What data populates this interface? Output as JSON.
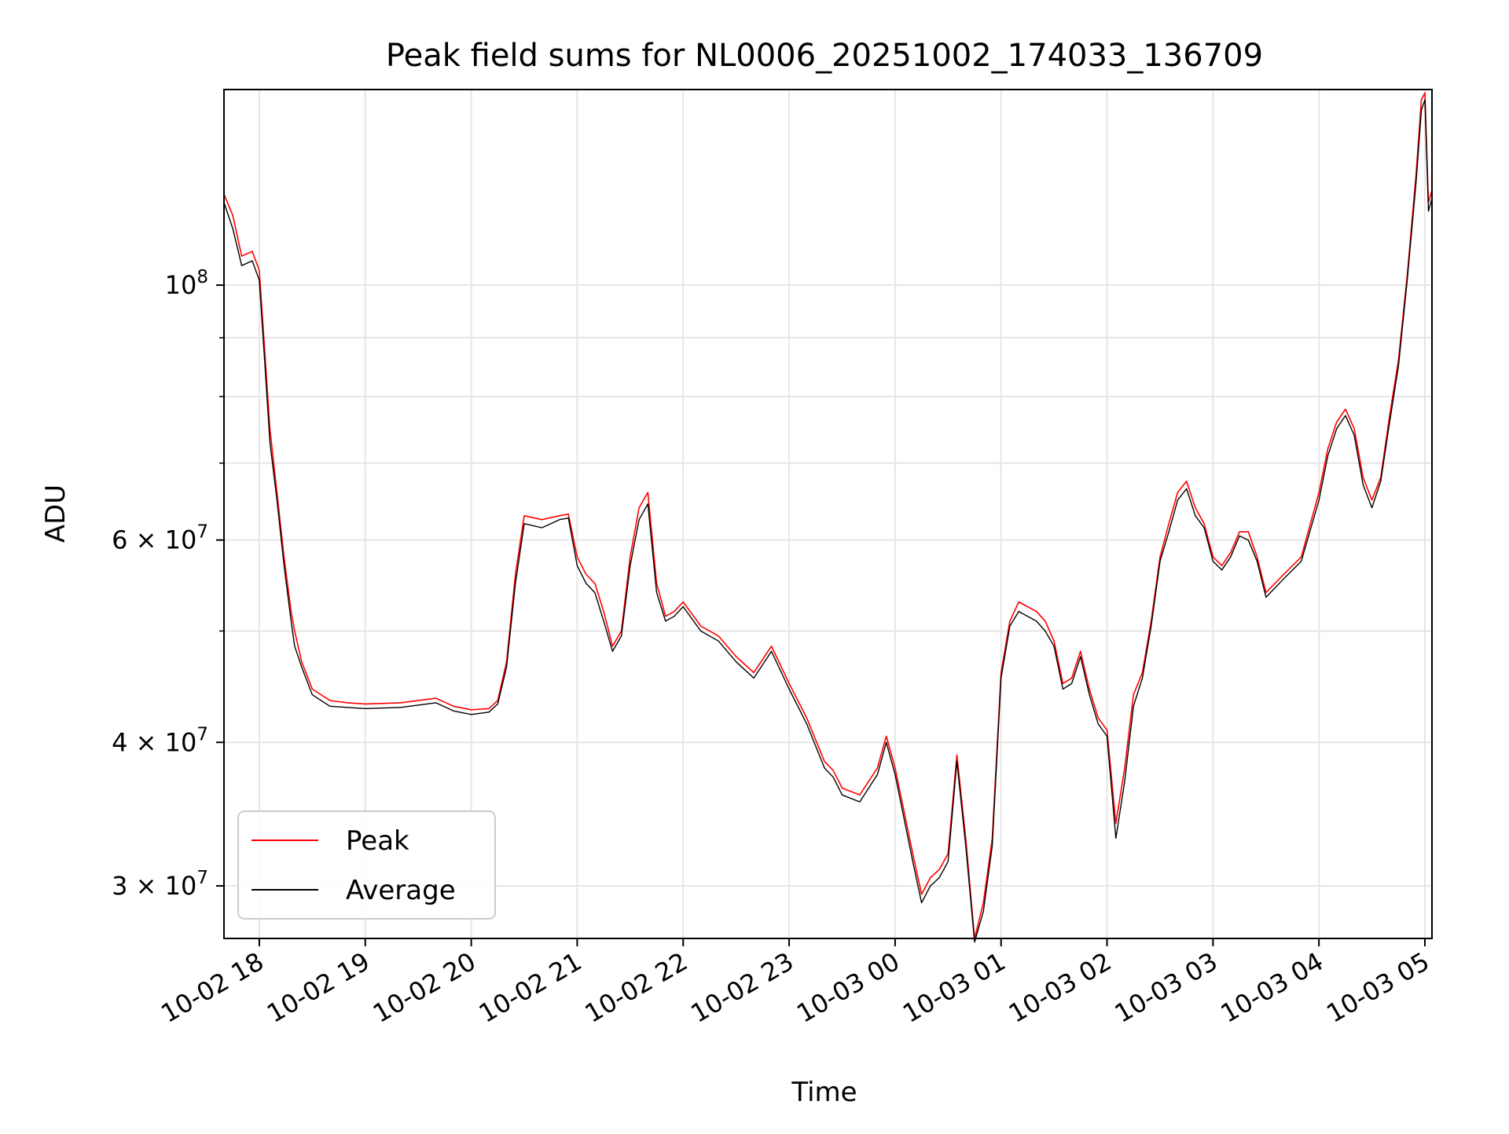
{
  "chart_data": {
    "type": "line",
    "title": "Peak field sums for NL0006_20251002_174033_136709",
    "xlabel": "Time",
    "ylabel": "ADU",
    "yscale": "log",
    "xlim": [
      "2025-10-02 17:40",
      "2025-10-03 05:04"
    ],
    "ylim": [
      27000000,
      148000000
    ],
    "grid": true,
    "legend_position": "lower-left",
    "x_ticks": [
      {
        "value": "2025-10-02 18:00",
        "label": "10-02 18"
      },
      {
        "value": "2025-10-02 19:00",
        "label": "10-02 19"
      },
      {
        "value": "2025-10-02 20:00",
        "label": "10-02 20"
      },
      {
        "value": "2025-10-02 21:00",
        "label": "10-02 21"
      },
      {
        "value": "2025-10-02 22:00",
        "label": "10-02 22"
      },
      {
        "value": "2025-10-02 23:00",
        "label": "10-02 23"
      },
      {
        "value": "2025-10-03 00:00",
        "label": "10-03 00"
      },
      {
        "value": "2025-10-03 01:00",
        "label": "10-03 01"
      },
      {
        "value": "2025-10-03 02:00",
        "label": "10-03 02"
      },
      {
        "value": "2025-10-03 03:00",
        "label": "10-03 03"
      },
      {
        "value": "2025-10-03 04:00",
        "label": "10-03 04"
      },
      {
        "value": "2025-10-03 05:00",
        "label": "10-03 05"
      }
    ],
    "y_ticks": [
      {
        "value": 100000000,
        "mantissa": "",
        "exp": "8"
      },
      {
        "value": 60000000,
        "mantissa": "6",
        "exp": "7"
      },
      {
        "value": 40000000,
        "mantissa": "4",
        "exp": "7"
      },
      {
        "value": 30000000,
        "mantissa": "3",
        "exp": "7"
      }
    ],
    "y_minor_ticks": [
      50000000,
      70000000,
      80000000,
      90000000
    ],
    "series": [
      {
        "name": "Peak",
        "color": "#ff0000",
        "x": [
          "2025-10-02 17:40",
          "2025-10-02 17:45",
          "2025-10-02 17:50",
          "2025-10-02 17:56",
          "2025-10-02 18:00",
          "2025-10-02 18:03",
          "2025-10-02 18:06",
          "2025-10-02 18:10",
          "2025-10-02 18:14",
          "2025-10-02 18:18",
          "2025-10-02 18:20",
          "2025-10-02 18:24",
          "2025-10-02 18:30",
          "2025-10-02 18:40",
          "2025-10-02 18:50",
          "2025-10-02 19:00",
          "2025-10-02 19:20",
          "2025-10-02 19:40",
          "2025-10-02 19:50",
          "2025-10-02 20:00",
          "2025-10-02 20:10",
          "2025-10-02 20:15",
          "2025-10-02 20:20",
          "2025-10-02 20:25",
          "2025-10-02 20:30",
          "2025-10-02 20:40",
          "2025-10-02 20:50",
          "2025-10-02 20:55",
          "2025-10-02 21:00",
          "2025-10-02 21:05",
          "2025-10-02 21:10",
          "2025-10-02 21:15",
          "2025-10-02 21:20",
          "2025-10-02 21:25",
          "2025-10-02 21:30",
          "2025-10-02 21:35",
          "2025-10-02 21:40",
          "2025-10-02 21:45",
          "2025-10-02 21:50",
          "2025-10-02 21:55",
          "2025-10-02 22:00",
          "2025-10-02 22:10",
          "2025-10-02 22:20",
          "2025-10-02 22:30",
          "2025-10-02 22:40",
          "2025-10-02 22:50",
          "2025-10-02 23:00",
          "2025-10-02 23:10",
          "2025-10-02 23:20",
          "2025-10-02 23:25",
          "2025-10-02 23:30",
          "2025-10-02 23:40",
          "2025-10-02 23:50",
          "2025-10-02 23:55",
          "2025-10-03 00:00",
          "2025-10-03 00:10",
          "2025-10-03 00:15",
          "2025-10-03 00:20",
          "2025-10-03 00:25",
          "2025-10-03 00:30",
          "2025-10-03 00:35",
          "2025-10-03 00:40",
          "2025-10-03 00:45",
          "2025-10-03 00:50",
          "2025-10-03 00:55",
          "2025-10-03 01:00",
          "2025-10-03 01:05",
          "2025-10-03 01:10",
          "2025-10-03 01:15",
          "2025-10-03 01:20",
          "2025-10-03 01:25",
          "2025-10-03 01:30",
          "2025-10-03 01:35",
          "2025-10-03 01:40",
          "2025-10-03 01:45",
          "2025-10-03 01:50",
          "2025-10-03 01:55",
          "2025-10-03 02:00",
          "2025-10-03 02:05",
          "2025-10-03 02:10",
          "2025-10-03 02:15",
          "2025-10-03 02:20",
          "2025-10-03 02:25",
          "2025-10-03 02:30",
          "2025-10-03 02:35",
          "2025-10-03 02:40",
          "2025-10-03 02:45",
          "2025-10-03 02:50",
          "2025-10-03 02:55",
          "2025-10-03 03:00",
          "2025-10-03 03:05",
          "2025-10-03 03:10",
          "2025-10-03 03:15",
          "2025-10-03 03:20",
          "2025-10-03 03:25",
          "2025-10-03 03:30",
          "2025-10-03 03:40",
          "2025-10-03 03:50",
          "2025-10-03 04:00",
          "2025-10-03 04:05",
          "2025-10-03 04:10",
          "2025-10-03 04:15",
          "2025-10-03 04:20",
          "2025-10-03 04:25",
          "2025-10-03 04:30",
          "2025-10-03 04:35",
          "2025-10-03 04:40",
          "2025-10-03 04:45",
          "2025-10-03 04:50",
          "2025-10-03 04:55",
          "2025-10-03 04:58",
          "2025-10-03 05:00",
          "2025-10-03 05:02",
          "2025-10-03 05:04"
        ],
        "y": [
          120000000,
          115000000,
          106000000,
          107000000,
          103000000,
          88000000,
          75000000,
          66000000,
          58000000,
          52000000,
          50000000,
          47000000,
          44500000,
          43500000,
          43300000,
          43200000,
          43300000,
          43700000,
          43000000,
          42700000,
          42800000,
          43500000,
          47000000,
          56000000,
          63000000,
          62500000,
          63000000,
          63200000,
          58000000,
          56000000,
          55000000,
          52000000,
          48500000,
          50000000,
          58000000,
          64000000,
          66000000,
          55000000,
          51500000,
          52000000,
          53000000,
          50500000,
          49500000,
          47500000,
          46000000,
          48500000,
          45000000,
          42000000,
          38500000,
          37800000,
          36500000,
          36000000,
          38000000,
          40500000,
          38000000,
          32000000,
          29500000,
          30500000,
          31000000,
          32000000,
          39000000,
          33000000,
          27000000,
          29000000,
          33000000,
          46000000,
          51000000,
          53000000,
          52500000,
          52000000,
          51000000,
          49000000,
          45000000,
          45500000,
          48000000,
          44500000,
          42000000,
          41000000,
          34000000,
          38000000,
          44000000,
          46000000,
          51000000,
          58000000,
          62000000,
          66000000,
          67500000,
          64000000,
          62000000,
          58000000,
          57000000,
          58500000,
          61000000,
          61000000,
          58000000,
          54000000,
          56000000,
          58000000,
          66000000,
          72000000,
          76000000,
          78000000,
          75000000,
          68000000,
          65000000,
          68000000,
          77000000,
          86000000,
          102000000,
          125000000,
          145000000,
          147000000,
          118000000,
          121000000
        ]
      },
      {
        "name": "Average",
        "color": "#000000",
        "x": [
          "2025-10-02 17:40",
          "2025-10-02 17:45",
          "2025-10-02 17:50",
          "2025-10-02 17:56",
          "2025-10-02 18:00",
          "2025-10-02 18:03",
          "2025-10-02 18:06",
          "2025-10-02 18:10",
          "2025-10-02 18:14",
          "2025-10-02 18:18",
          "2025-10-02 18:20",
          "2025-10-02 18:24",
          "2025-10-02 18:30",
          "2025-10-02 18:40",
          "2025-10-02 18:50",
          "2025-10-02 19:00",
          "2025-10-02 19:20",
          "2025-10-02 19:40",
          "2025-10-02 19:50",
          "2025-10-02 20:00",
          "2025-10-02 20:10",
          "2025-10-02 20:15",
          "2025-10-02 20:20",
          "2025-10-02 20:25",
          "2025-10-02 20:30",
          "2025-10-02 20:40",
          "2025-10-02 20:50",
          "2025-10-02 20:55",
          "2025-10-02 21:00",
          "2025-10-02 21:05",
          "2025-10-02 21:10",
          "2025-10-02 21:15",
          "2025-10-02 21:20",
          "2025-10-02 21:25",
          "2025-10-02 21:30",
          "2025-10-02 21:35",
          "2025-10-02 21:40",
          "2025-10-02 21:45",
          "2025-10-02 21:50",
          "2025-10-02 21:55",
          "2025-10-02 22:00",
          "2025-10-02 22:10",
          "2025-10-02 22:20",
          "2025-10-02 22:30",
          "2025-10-02 22:40",
          "2025-10-02 22:50",
          "2025-10-02 23:00",
          "2025-10-02 23:10",
          "2025-10-02 23:20",
          "2025-10-02 23:25",
          "2025-10-02 23:30",
          "2025-10-02 23:40",
          "2025-10-02 23:50",
          "2025-10-02 23:55",
          "2025-10-03 00:00",
          "2025-10-03 00:10",
          "2025-10-03 00:15",
          "2025-10-03 00:20",
          "2025-10-03 00:25",
          "2025-10-03 00:30",
          "2025-10-03 00:35",
          "2025-10-03 00:40",
          "2025-10-03 00:45",
          "2025-10-03 00:50",
          "2025-10-03 00:55",
          "2025-10-03 01:00",
          "2025-10-03 01:05",
          "2025-10-03 01:10",
          "2025-10-03 01:15",
          "2025-10-03 01:20",
          "2025-10-03 01:25",
          "2025-10-03 01:30",
          "2025-10-03 01:35",
          "2025-10-03 01:40",
          "2025-10-03 01:45",
          "2025-10-03 01:50",
          "2025-10-03 01:55",
          "2025-10-03 02:00",
          "2025-10-03 02:05",
          "2025-10-03 02:10",
          "2025-10-03 02:15",
          "2025-10-03 02:20",
          "2025-10-03 02:25",
          "2025-10-03 02:30",
          "2025-10-03 02:35",
          "2025-10-03 02:40",
          "2025-10-03 02:45",
          "2025-10-03 02:50",
          "2025-10-03 02:55",
          "2025-10-03 03:00",
          "2025-10-03 03:05",
          "2025-10-03 03:10",
          "2025-10-03 03:15",
          "2025-10-03 03:20",
          "2025-10-03 03:25",
          "2025-10-03 03:30",
          "2025-10-03 03:40",
          "2025-10-03 03:50",
          "2025-10-03 04:00",
          "2025-10-03 04:05",
          "2025-10-03 04:10",
          "2025-10-03 04:15",
          "2025-10-03 04:20",
          "2025-10-03 04:25",
          "2025-10-03 04:30",
          "2025-10-03 04:35",
          "2025-10-03 04:40",
          "2025-10-03 04:45",
          "2025-10-03 04:50",
          "2025-10-03 04:55",
          "2025-10-03 04:58",
          "2025-10-03 05:00",
          "2025-10-03 05:02",
          "2025-10-03 05:04"
        ],
        "y": [
          118000000,
          112000000,
          104000000,
          105000000,
          101000000,
          86000000,
          73000000,
          65000000,
          57000000,
          51000000,
          48500000,
          46500000,
          44000000,
          43000000,
          42900000,
          42800000,
          42900000,
          43300000,
          42600000,
          42300000,
          42500000,
          43200000,
          46500000,
          55000000,
          62000000,
          61500000,
          62500000,
          62700000,
          57000000,
          55000000,
          54000000,
          51000000,
          48000000,
          49500000,
          57000000,
          62500000,
          64500000,
          54000000,
          51000000,
          51500000,
          52500000,
          50000000,
          49000000,
          47000000,
          45500000,
          48000000,
          44500000,
          41500000,
          38000000,
          37300000,
          36000000,
          35500000,
          37500000,
          40000000,
          37500000,
          31500000,
          29000000,
          30000000,
          30500000,
          31500000,
          38500000,
          32500000,
          26800000,
          28500000,
          32500000,
          45500000,
          50500000,
          52000000,
          51500000,
          51000000,
          50000000,
          48500000,
          44500000,
          45000000,
          47500000,
          44000000,
          41500000,
          40500000,
          33000000,
          37000000,
          43000000,
          45500000,
          50500000,
          57500000,
          61000000,
          65000000,
          66500000,
          63000000,
          61500000,
          57500000,
          56500000,
          58000000,
          60500000,
          60000000,
          57500000,
          53500000,
          55500000,
          57500000,
          65000000,
          71000000,
          75000000,
          77000000,
          74000000,
          67000000,
          64000000,
          67500000,
          76000000,
          85000000,
          101000000,
          123000000,
          142000000,
          145000000,
          116000000,
          119000000
        ]
      }
    ]
  }
}
